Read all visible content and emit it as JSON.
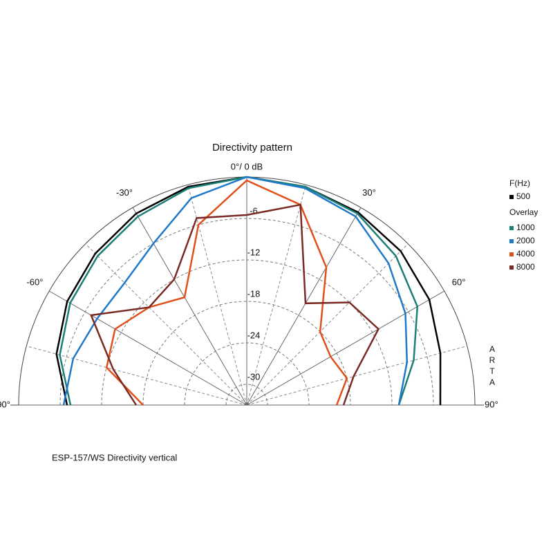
{
  "chart_data": {
    "type": "polar",
    "title": "Directivity pattern",
    "legend_title": "F(Hz)",
    "overlay_label": "Overlay",
    "note": "ESP-157/WS  Directivity vertical",
    "watermark": "ARTA",
    "x": [
      -90,
      -75,
      -60,
      -45,
      -30,
      -15,
      0,
      15,
      30,
      45,
      60,
      75,
      90
    ],
    "xlim": [
      -90,
      90
    ],
    "xticks": [
      {
        "value": -90,
        "label": "-90°"
      },
      {
        "value": -60,
        "label": "-60°"
      },
      {
        "value": -30,
        "label": "-30°"
      },
      {
        "value": 0,
        "label": "0°/ 0 dB"
      },
      {
        "value": 30,
        "label": "30°"
      },
      {
        "value": 60,
        "label": "60°"
      },
      {
        "value": 90,
        "label": "90°"
      }
    ],
    "minor_xticks": [
      -75,
      -45,
      -15,
      15,
      45,
      75
    ],
    "ylim": [
      -33,
      0
    ],
    "yticks": [
      -30,
      -24,
      -18,
      -12,
      -6
    ],
    "series": [
      {
        "name": "500",
        "color": "#000000",
        "values": [
          -7,
          -4.5,
          -3,
          -2,
          -1,
          -0.3,
          0,
          -0.3,
          -0.8,
          -1.5,
          -2.5,
          -4,
          -5
        ]
      },
      {
        "name": "1000",
        "color": "#1a7f74",
        "values": [
          -7.5,
          -5,
          -3.5,
          -2.5,
          -1.5,
          -0.5,
          0,
          -0.3,
          -1,
          -2.5,
          -4.5,
          -8,
          -11
        ]
      },
      {
        "name": "2000",
        "color": "#1f78c8",
        "values": [
          -6.5,
          -7,
          -8,
          -8,
          -6,
          -2,
          0,
          -0.5,
          -1.5,
          -4,
          -6.5,
          -9,
          -11
        ]
      },
      {
        "name": "4000",
        "color": "#e0501a",
        "values": [
          -18,
          -12,
          -11,
          -13,
          -15,
          -6,
          -0.5,
          -3,
          -10,
          -18,
          -19,
          -18,
          -20
        ]
      },
      {
        "name": "8000",
        "color": "#7a2a22",
        "values": [
          -17,
          -13,
          -7,
          -13,
          -12,
          -5,
          -5.5,
          -3,
          -16,
          -12,
          -11,
          -17,
          -19
        ]
      }
    ]
  }
}
